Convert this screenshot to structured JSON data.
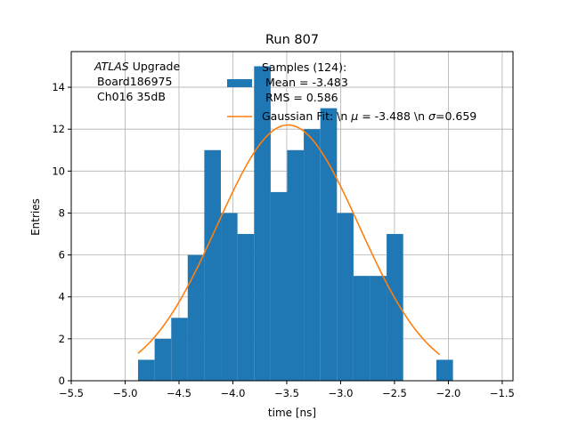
{
  "colors": {
    "histogram": "#1f77b4",
    "fit": "#ff7f0e",
    "grid": "#b0b0b0",
    "axis": "#000000"
  },
  "chart_data": {
    "type": "bar",
    "title": "Run 807",
    "xlabel": "time [ns]",
    "ylabel": "Entries",
    "xlim": [
      -5.5,
      -1.4
    ],
    "ylim": [
      0,
      15.7
    ],
    "grid": true,
    "x_ticks": [
      {
        "value": -5.5,
        "label": "−5.5"
      },
      {
        "value": -5.0,
        "label": "−5.0"
      },
      {
        "value": -4.5,
        "label": "−4.5"
      },
      {
        "value": -4.0,
        "label": "−4.0"
      },
      {
        "value": -3.5,
        "label": "−3.5"
      },
      {
        "value": -3.0,
        "label": "−3.0"
      },
      {
        "value": -2.5,
        "label": "−2.5"
      },
      {
        "value": -2.0,
        "label": "−2.0"
      },
      {
        "value": -1.5,
        "label": "−1.5"
      }
    ],
    "y_ticks": [
      {
        "value": 0,
        "label": "0"
      },
      {
        "value": 2,
        "label": "2"
      },
      {
        "value": 4,
        "label": "4"
      },
      {
        "value": 6,
        "label": "6"
      },
      {
        "value": 8,
        "label": "8"
      },
      {
        "value": 10,
        "label": "10"
      },
      {
        "value": 12,
        "label": "12"
      },
      {
        "value": 14,
        "label": "14"
      }
    ],
    "bin_width": 0.1538,
    "bins": [
      {
        "left": -4.88,
        "count": 1
      },
      {
        "left": -4.726,
        "count": 2
      },
      {
        "left": -4.572,
        "count": 3
      },
      {
        "left": -4.419,
        "count": 6
      },
      {
        "left": -4.265,
        "count": 11
      },
      {
        "left": -4.111,
        "count": 8
      },
      {
        "left": -3.957,
        "count": 7
      },
      {
        "left": -3.803,
        "count": 15
      },
      {
        "left": -3.649,
        "count": 9
      },
      {
        "left": -3.496,
        "count": 11
      },
      {
        "left": -3.342,
        "count": 12
      },
      {
        "left": -3.188,
        "count": 13
      },
      {
        "left": -3.034,
        "count": 8
      },
      {
        "left": -2.88,
        "count": 5
      },
      {
        "left": -2.726,
        "count": 5
      },
      {
        "left": -2.573,
        "count": 7
      },
      {
        "left": -2.419,
        "count": 0
      },
      {
        "left": -2.265,
        "count": 0
      },
      {
        "left": -2.111,
        "count": 1
      }
    ],
    "fit": {
      "amplitude": 12.2,
      "mu": -3.488,
      "sigma": 0.659,
      "x_range": [
        -4.88,
        -2.08
      ]
    },
    "annotation": {
      "atlas": "ATLAS",
      "upgrade": " Upgrade",
      "board": "Board186975",
      "channel": "Ch016 35dB"
    },
    "legend": {
      "placement": "top-right",
      "samples_line1": "Samples (124):",
      "samples_line2": "Mean = -3.483",
      "samples_line3": "RMS = 0.586",
      "fit_prefix": "Gaussian Fit: \\n ",
      "fit_mu_symbol": "μ",
      "fit_mid": " = -3.488 \\n ",
      "fit_sigma_symbol": "σ",
      "fit_suffix": "=0.659"
    }
  }
}
